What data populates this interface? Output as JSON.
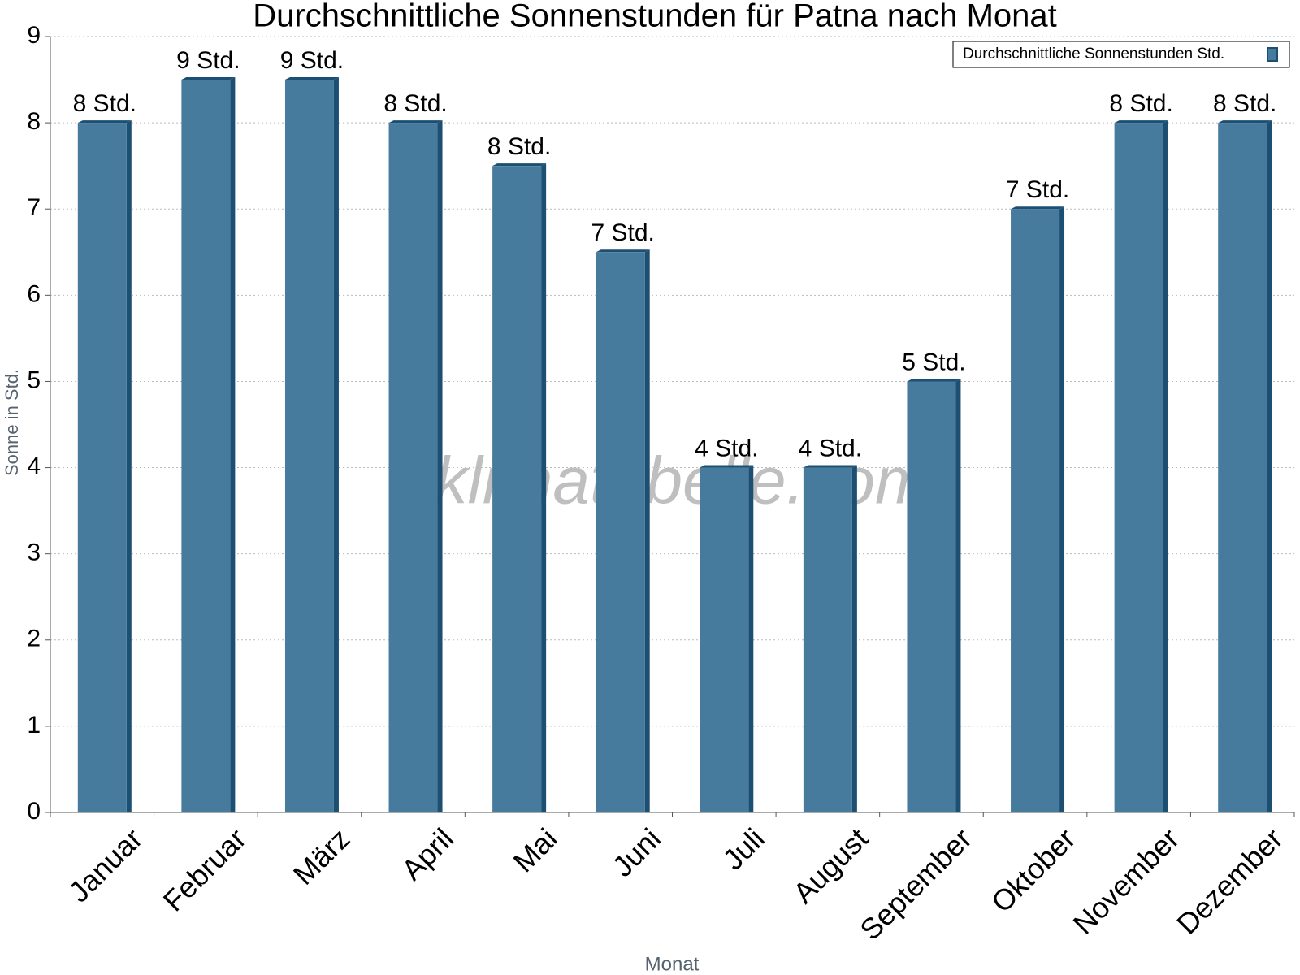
{
  "chart_data": {
    "type": "bar",
    "title": "Durchschnittliche Sonnenstunden für Patna nach Monat",
    "x_label": "Monat",
    "y_label": "Sonne in Std.",
    "watermark": "klimatabelle.com",
    "categories": [
      "Januar",
      "Februar",
      "März",
      "April",
      "Mai",
      "Juni",
      "Juli",
      "August",
      "September",
      "Oktober",
      "November",
      "Dezember"
    ],
    "series": [
      {
        "name": "Durchschnittliche Sonnenstunden Std.",
        "color": "#467b9e",
        "values": [
          8,
          8.5,
          8.5,
          8,
          7.5,
          6.5,
          4,
          4,
          5,
          7,
          8,
          8
        ],
        "value_labels": [
          "8 Std.",
          "9 Std.",
          "9 Std.",
          "8 Std.",
          "8 Std.",
          "7 Std.",
          "4 Std.",
          "4 Std.",
          "5 Std.",
          "7 Std.",
          "8 Std.",
          "8 Std."
        ]
      }
    ],
    "ylim": [
      0,
      9
    ],
    "yticks": [
      0,
      1,
      2,
      3,
      4,
      5,
      6,
      7,
      8,
      9
    ],
    "grid": true,
    "legend": "top-right"
  }
}
